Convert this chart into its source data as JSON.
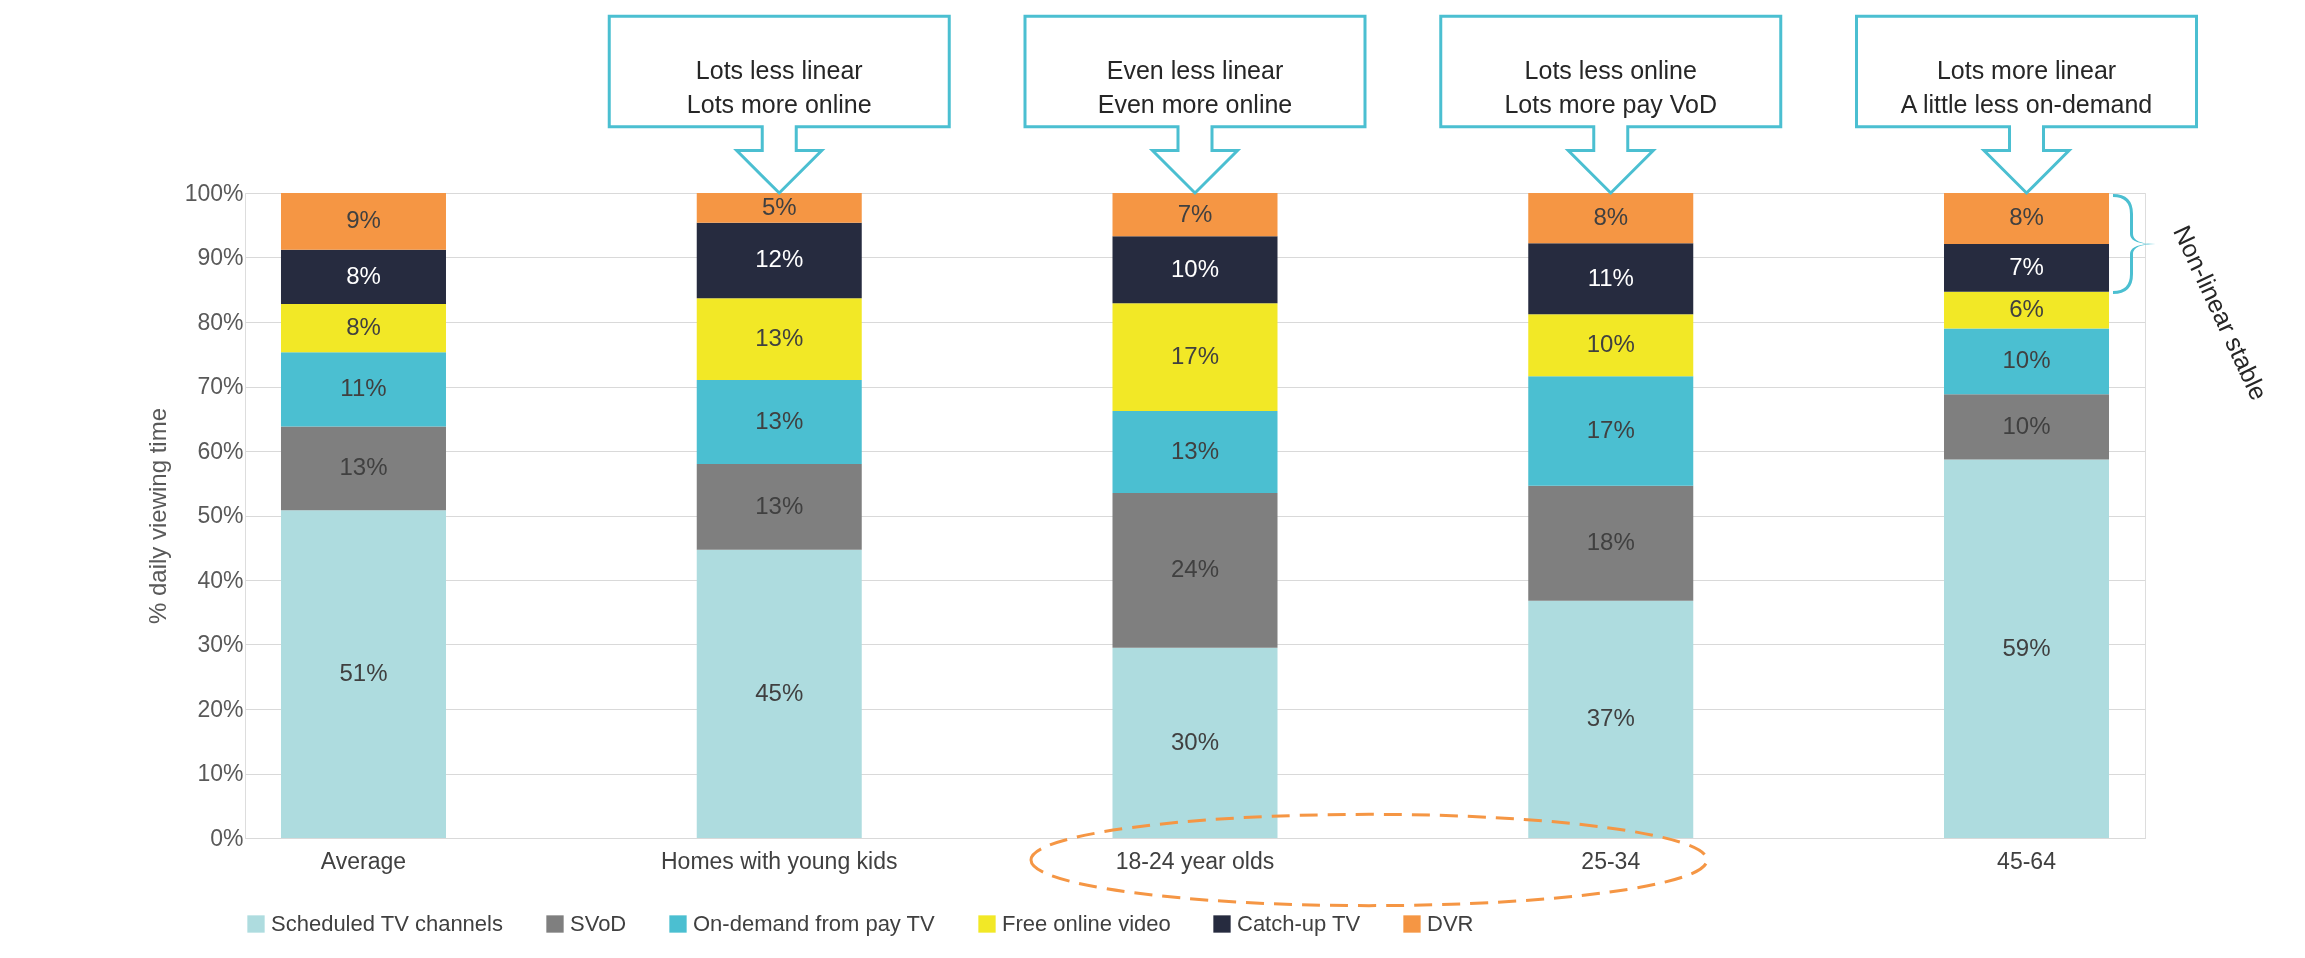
{
  "chart_data": {
    "type": "bar",
    "stacked": true,
    "ylabel": "% daily viewing time",
    "categories": [
      "Average",
      "Homes with young kids",
      "18-24 year olds",
      "25-34",
      "45-64"
    ],
    "series": [
      {
        "name": "Scheduled TV channels",
        "color": "#aedcdf",
        "values": [
          50.8,
          44.7,
          29.5,
          36.8,
          58.7
        ],
        "value_labels": [
          "51%",
          "45%",
          "30%",
          "37%",
          "59%"
        ]
      },
      {
        "name": "SVoD",
        "color": "#7f7f7f",
        "values": [
          13,
          13.3,
          24,
          17.8,
          10.1
        ],
        "value_labels": [
          "13%",
          "13%",
          "24%",
          "18%",
          "10%"
        ]
      },
      {
        "name": "On-demand from pay TV",
        "color": "#4bbfd1",
        "values": [
          11.5,
          13,
          12.7,
          17,
          10.2
        ],
        "value_labels": [
          "11%",
          "13%",
          "13%",
          "17%",
          "10%"
        ]
      },
      {
        "name": "Free online video",
        "color": "#f2e826",
        "values": [
          7.5,
          12.7,
          16.7,
          9.6,
          5.7
        ],
        "value_labels": [
          "8%",
          "13%",
          "17%",
          "10%",
          "6%"
        ]
      },
      {
        "name": "Catch-up TV",
        "color": "#262b3f",
        "values": [
          8.4,
          11.7,
          10.4,
          11,
          7.4
        ],
        "value_labels": [
          "8%",
          "12%",
          "10%",
          "11%",
          "7%"
        ]
      },
      {
        "name": "DVR",
        "color": "#f59644",
        "values": [
          8.8,
          4.6,
          6.7,
          7.8,
          7.9
        ],
        "value_labels": [
          "9%",
          "5%",
          "7%",
          "8%",
          "8%"
        ]
      }
    ],
    "ylim": [
      0,
      100
    ],
    "yticks": [
      {
        "value": 0,
        "label": "0%"
      },
      {
        "value": 10,
        "label": "10%"
      },
      {
        "value": 20,
        "label": "20%"
      },
      {
        "value": 30,
        "label": "30%"
      },
      {
        "value": 40,
        "label": "40%"
      },
      {
        "value": 50,
        "label": "50%"
      },
      {
        "value": 60,
        "label": "60%"
      },
      {
        "value": 70,
        "label": "70%"
      },
      {
        "value": 80,
        "label": "80%"
      },
      {
        "value": 90,
        "label": "90%"
      },
      {
        "value": 100,
        "label": "100%"
      }
    ],
    "grid": "y",
    "legend": "bottom",
    "annotations": [
      "Lots less linear\nLots more online",
      "Even less linear\nEven more online",
      "Lots less online\nLots more pay VoD",
      "Lots more linear\nA little less on-demand",
      "Non-linear stable"
    ]
  }
}
